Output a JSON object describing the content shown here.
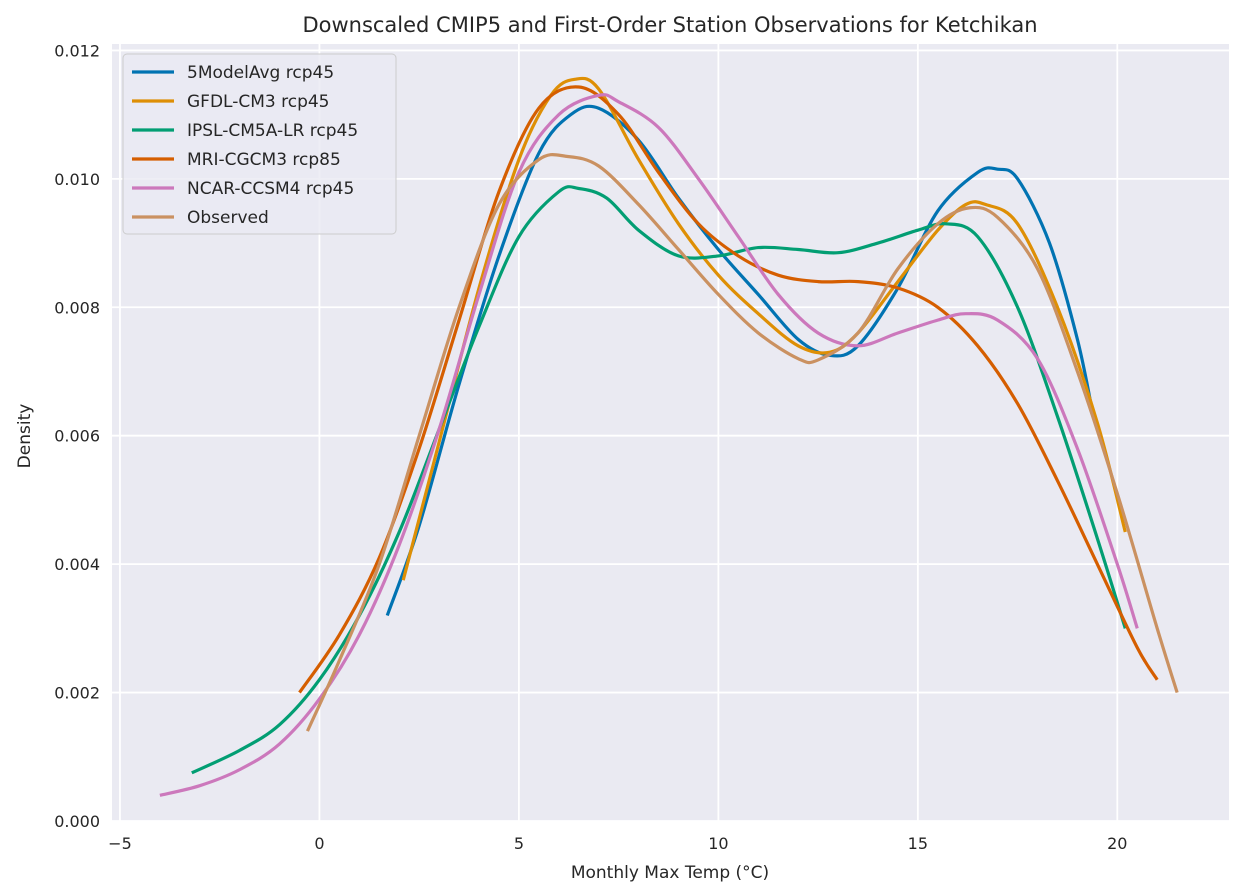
{
  "chart_data": {
    "type": "line",
    "title": "Downscaled CMIP5 and First-Order Station Observations for Ketchikan",
    "xlabel": "Monthly Max Temp (°C)",
    "ylabel": "Density",
    "xlim": [
      -5.2,
      22.8
    ],
    "ylim": [
      0,
      0.0121
    ],
    "xticks": [
      -5,
      0,
      5,
      10,
      15,
      20
    ],
    "yticks": [
      0.0,
      0.002,
      0.004,
      0.006,
      0.008,
      0.01,
      0.012
    ],
    "xtick_labels": [
      "−5",
      "0",
      "5",
      "10",
      "15",
      "20"
    ],
    "ytick_labels": [
      "0.000",
      "0.002",
      "0.004",
      "0.006",
      "0.008",
      "0.010",
      "0.012"
    ],
    "grid": true,
    "legend_position": "top-left",
    "series": [
      {
        "name": "5ModelAvg rcp45",
        "color": "#0173b2",
        "x": [
          1.7,
          2.5,
          3.5,
          4.5,
          5.5,
          6.3,
          7.0,
          8.0,
          9.0,
          10.0,
          11.0,
          12.0,
          12.8,
          13.5,
          14.5,
          15.5,
          16.5,
          17.0,
          17.5,
          18.3,
          19.0,
          19.4
        ],
        "y": [
          0.0032,
          0.0046,
          0.0068,
          0.0088,
          0.0104,
          0.011,
          0.0111,
          0.0106,
          0.0097,
          0.0089,
          0.0082,
          0.0075,
          0.00725,
          0.0074,
          0.0083,
          0.0095,
          0.0101,
          0.01015,
          0.01,
          0.009,
          0.0075,
          0.0063
        ]
      },
      {
        "name": "GFDL-CM3 rcp45",
        "color": "#de8f05",
        "x": [
          2.1,
          3.0,
          4.0,
          5.0,
          5.8,
          6.4,
          7.0,
          8.0,
          9.0,
          10.0,
          11.0,
          12.0,
          12.8,
          13.5,
          14.5,
          15.5,
          16.2,
          16.7,
          17.5,
          18.5,
          19.5,
          20.2
        ],
        "y": [
          0.00375,
          0.0059,
          0.0083,
          0.0103,
          0.0113,
          0.01155,
          0.0114,
          0.0103,
          0.0093,
          0.0085,
          0.0079,
          0.0074,
          0.0073,
          0.0076,
          0.0084,
          0.0092,
          0.0096,
          0.0096,
          0.0093,
          0.008,
          0.0062,
          0.0045
        ]
      },
      {
        "name": "IPSL-CM5A-LR rcp45",
        "color": "#029e73",
        "x": [
          -3.2,
          -2.0,
          -1.0,
          0.0,
          1.0,
          2.0,
          3.0,
          4.0,
          5.0,
          6.0,
          6.5,
          7.2,
          8.0,
          9.0,
          10.0,
          11.0,
          12.0,
          13.0,
          14.0,
          15.0,
          15.7,
          16.5,
          17.5,
          18.5,
          19.5,
          20.2
        ],
        "y": [
          0.00075,
          0.0011,
          0.0015,
          0.0022,
          0.0032,
          0.0045,
          0.0061,
          0.0077,
          0.0091,
          0.0098,
          0.00985,
          0.0097,
          0.0092,
          0.0088,
          0.0088,
          0.00893,
          0.0089,
          0.00885,
          0.009,
          0.0092,
          0.0093,
          0.0091,
          0.008,
          0.0063,
          0.0044,
          0.003
        ]
      },
      {
        "name": "MRI-CGCM3 rcp85",
        "color": "#d55e00",
        "x": [
          -0.5,
          0.5,
          1.5,
          2.5,
          3.5,
          4.5,
          5.5,
          6.5,
          7.5,
          8.5,
          9.5,
          10.5,
          11.5,
          12.5,
          13.5,
          14.5,
          15.5,
          16.5,
          17.5,
          18.5,
          19.5,
          20.5,
          21.0
        ],
        "y": [
          0.002,
          0.0029,
          0.0041,
          0.0058,
          0.0078,
          0.0098,
          0.0111,
          0.01143,
          0.011,
          0.0101,
          0.0093,
          0.0088,
          0.0085,
          0.0084,
          0.0084,
          0.0083,
          0.008,
          0.0074,
          0.0065,
          0.0053,
          0.004,
          0.0027,
          0.0022
        ]
      },
      {
        "name": "NCAR-CCSM4 rcp45",
        "color": "#cc78bc",
        "x": [
          -4.0,
          -3.0,
          -2.0,
          -1.0,
          0.0,
          1.0,
          2.0,
          3.0,
          4.0,
          5.0,
          6.0,
          7.0,
          7.5,
          8.5,
          9.5,
          10.5,
          11.5,
          12.5,
          13.5,
          14.5,
          15.5,
          16.2,
          17.0,
          18.0,
          19.0,
          20.0,
          20.5
        ],
        "y": [
          0.0004,
          0.00055,
          0.0008,
          0.0012,
          0.0019,
          0.0029,
          0.0043,
          0.0061,
          0.0082,
          0.0101,
          0.011,
          0.0113,
          0.0112,
          0.0108,
          0.01,
          0.0091,
          0.0082,
          0.0076,
          0.0074,
          0.0076,
          0.0078,
          0.0079,
          0.0078,
          0.0072,
          0.0058,
          0.004,
          0.003
        ]
      },
      {
        "name": "Observed",
        "color": "#ca9161",
        "x": [
          -0.3,
          0.5,
          1.5,
          2.5,
          3.5,
          4.5,
          5.5,
          6.2,
          7.0,
          8.0,
          9.0,
          10.0,
          11.0,
          12.0,
          12.5,
          13.5,
          14.5,
          15.5,
          16.3,
          17.0,
          18.0,
          19.0,
          20.0,
          21.0,
          21.5
        ],
        "y": [
          0.0014,
          0.0025,
          0.004,
          0.006,
          0.008,
          0.0096,
          0.0103,
          0.01035,
          0.0102,
          0.0096,
          0.0089,
          0.0082,
          0.0076,
          0.0072,
          0.00718,
          0.0076,
          0.0086,
          0.0093,
          0.00955,
          0.0094,
          0.0086,
          0.007,
          0.0051,
          0.003,
          0.002
        ]
      }
    ]
  }
}
